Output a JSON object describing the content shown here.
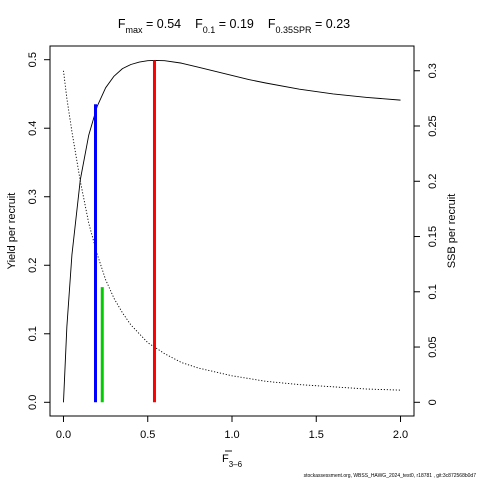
{
  "chart_data": {
    "type": "line",
    "title_parts": [
      {
        "main": "F",
        "sub": "max",
        "value": " = 0.54"
      },
      {
        "main": "F",
        "sub": "0.1",
        "value": " = 0.19"
      },
      {
        "main": "F",
        "sub": "0.35SPR",
        "value": " = 0.23"
      }
    ],
    "xlabel_main": "F",
    "xlabel_sub": "3–6",
    "ylabel": "Yield per recruit",
    "y2label": "SSB per recruit",
    "xlim": [
      -0.08,
      2.08
    ],
    "ylim": [
      -0.02,
      0.52
    ],
    "y2lim": [
      -0.0124,
      0.3224
    ],
    "x_ticks": [
      {
        "v": 0,
        "label": "0.0"
      },
      {
        "v": 0.5,
        "label": "0.5"
      },
      {
        "v": 1,
        "label": "1.0"
      },
      {
        "v": 1.5,
        "label": "1.5"
      },
      {
        "v": 2,
        "label": "2.0"
      }
    ],
    "y_ticks": [
      {
        "v": 0,
        "label": "0.0"
      },
      {
        "v": 0.1,
        "label": "0.1"
      },
      {
        "v": 0.2,
        "label": "0.2"
      },
      {
        "v": 0.3,
        "label": "0.3"
      },
      {
        "v": 0.4,
        "label": "0.4"
      },
      {
        "v": 0.5,
        "label": "0.5"
      }
    ],
    "y2_ticks": [
      {
        "v": 0,
        "label": "0"
      },
      {
        "v": 0.05,
        "label": "0.05"
      },
      {
        "v": 0.1,
        "label": "0.1"
      },
      {
        "v": 0.15,
        "label": "0.15"
      },
      {
        "v": 0.2,
        "label": "0.2"
      },
      {
        "v": 0.25,
        "label": "0.25"
      },
      {
        "v": 0.3,
        "label": "0.3"
      }
    ],
    "series": [
      {
        "axis": "left",
        "style": "solid",
        "color": "#000000",
        "x": [
          0,
          0.02,
          0.05,
          0.1,
          0.15,
          0.2,
          0.25,
          0.3,
          0.35,
          0.4,
          0.45,
          0.5,
          0.54,
          0.6,
          0.7,
          0.8,
          0.9,
          1.0,
          1.1,
          1.2,
          1.4,
          1.6,
          1.8,
          2.0
        ],
        "y": [
          0,
          0.11,
          0.215,
          0.325,
          0.39,
          0.432,
          0.459,
          0.476,
          0.487,
          0.493,
          0.4965,
          0.4985,
          0.499,
          0.4985,
          0.495,
          0.489,
          0.483,
          0.477,
          0.471,
          0.466,
          0.457,
          0.45,
          0.445,
          0.441
        ]
      },
      {
        "axis": "right",
        "style": "dotted",
        "color": "#000000",
        "x": [
          0,
          0.02,
          0.05,
          0.1,
          0.15,
          0.2,
          0.25,
          0.3,
          0.35,
          0.4,
          0.5,
          0.6,
          0.7,
          0.8,
          1.0,
          1.2,
          1.4,
          1.6,
          1.8,
          2.0
        ],
        "y": [
          0.3,
          0.275,
          0.245,
          0.2,
          0.162,
          0.134,
          0.111,
          0.094,
          0.081,
          0.07,
          0.054,
          0.044,
          0.036,
          0.031,
          0.024,
          0.019,
          0.016,
          0.014,
          0.012,
          0.011
        ]
      }
    ],
    "ref_lines": [
      {
        "label": "F0.1",
        "x": 0.19,
        "y": 0.435,
        "color": "#0000ff"
      },
      {
        "label": "F0.35SPR",
        "x": 0.23,
        "y": 0.168,
        "color": "#00cc00"
      },
      {
        "label": "Fmax",
        "x": 0.54,
        "y": 0.499,
        "color": "#ff0000"
      }
    ],
    "footer": "stockassessment.org, WBSS_HAWG_2024_test0, r18781 , git:3c872568b0d7"
  }
}
